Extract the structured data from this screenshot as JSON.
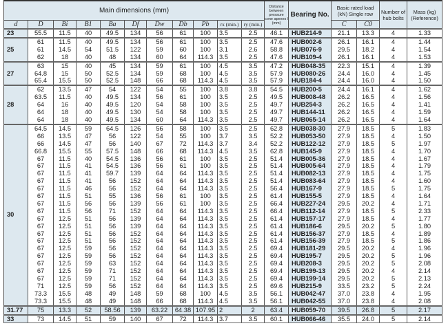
{
  "header": {
    "main_dimensions": "Main dimensions (mm)",
    "distance": "Distance between pressure cone apexes l (mm)",
    "bearing_no": "Bearing No.",
    "load": "Basic rated load (kN) Single row",
    "bolts": "Number of hub bolts",
    "mass": "Mass (kg) (Reference)",
    "columns": [
      "d",
      "D",
      "Bi",
      "B1",
      "Ba",
      "Df",
      "Dw",
      "Db",
      "Pb",
      "rx (min.)",
      "ry (min.)"
    ],
    "load_columns": [
      "C",
      "C0"
    ]
  },
  "colors": {
    "header_bg": "#dde8ef",
    "bearing_col_bg": "#dce8f0"
  },
  "groups": [
    {
      "d": "23",
      "rows": [
        [
          "55.5",
          "11.5",
          "40",
          "49.5",
          "134",
          "56",
          "61",
          "100",
          "3.5",
          "2.5",
          "46.1",
          "HUB214-9",
          "21.1",
          "13.3",
          "4",
          "1.33"
        ]
      ]
    },
    {
      "d": "25",
      "rows": [
        [
          "61",
          "11.5",
          "40",
          "49.5",
          "134",
          "56",
          "61",
          "100",
          "3.5",
          "2.5",
          "47.6",
          "HUB002-6",
          "26.1",
          "16.1",
          "4",
          "1.44"
        ],
        [
          "61",
          "14.5",
          "54",
          "51.5",
          "122",
          "59",
          "60",
          "100",
          "3.1",
          "2.6",
          "58.8",
          "HUB076-9",
          "29.5",
          "18.2",
          "4",
          "1.54"
        ],
        [
          "62",
          "18",
          "40",
          "48",
          "134",
          "60",
          "64",
          "114.3",
          "3.5",
          "2.5",
          "47.6",
          "HUB109-4",
          "26.1",
          "16.1",
          "4",
          "1.53"
        ]
      ]
    },
    {
      "d": "27",
      "rows": [
        [
          "63",
          "15",
          "40",
          "45",
          "134",
          "59",
          "61",
          "100",
          "4.5",
          "3.5",
          "47.2",
          "HUB048-35",
          "22.3",
          "15.1",
          "4",
          "1.39"
        ],
        [
          "64.8",
          "15",
          "50",
          "52.5",
          "134",
          "59",
          "68",
          "100",
          "4.5",
          "3.5",
          "57.9",
          "HUB080-26",
          "24.4",
          "16.0",
          "4",
          "1.45"
        ],
        [
          "65.4",
          "15.5",
          "50",
          "52.5",
          "148",
          "66",
          "68",
          "114.3",
          "4.5",
          "3.5",
          "57.9",
          "HUB184-4",
          "24.4",
          "16.0",
          "4",
          "1.50"
        ]
      ]
    },
    {
      "d": "28",
      "rows": [
        [
          "62",
          "13.5",
          "47",
          "54",
          "122",
          "54",
          "55",
          "100",
          "3.8",
          "3.8",
          "54.5",
          "HUB200-5",
          "24.4",
          "16.1",
          "4",
          "1.62"
        ],
        [
          "63.5",
          "11.5",
          "40",
          "49.5",
          "134",
          "56",
          "61",
          "100",
          "3.5",
          "2.5",
          "49.5",
          "HUB008-48",
          "26.2",
          "16.5",
          "4",
          "1.56"
        ],
        [
          "64",
          "16",
          "40",
          "49.5",
          "120",
          "54",
          "58",
          "100",
          "3.5",
          "2.5",
          "49.7",
          "HUB254-3",
          "26.2",
          "16.5",
          "4",
          "1.41"
        ],
        [
          "64",
          "18",
          "40",
          "49.5",
          "130",
          "54",
          "58",
          "100",
          "3.5",
          "2.5",
          "49.7",
          "HUB144-11",
          "26.2",
          "16.5",
          "4",
          "1.59"
        ],
        [
          "64",
          "18",
          "40",
          "49.5",
          "134",
          "60",
          "64",
          "114.3",
          "3.5",
          "2.5",
          "49.7",
          "HUB065-14",
          "26.2",
          "16.5",
          "4",
          "1.64"
        ]
      ]
    },
    {
      "d": "30",
      "rows": [
        [
          "64.5",
          "14.5",
          "59",
          "64.5",
          "126",
          "56",
          "58",
          "100",
          "3.5",
          "2.5",
          "62.8",
          "HUB038-30",
          "27.9",
          "18.5",
          "5",
          "1.83"
        ],
        [
          "66",
          "13.5",
          "47",
          "56",
          "122",
          "54",
          "55",
          "100",
          "3.7",
          "3.5",
          "52.2",
          "HUB053-50",
          "27.9",
          "18.5",
          "4",
          "1.50"
        ],
        [
          "66",
          "14.5",
          "47",
          "56",
          "140",
          "67",
          "72",
          "114.3",
          "3.7",
          "3.4",
          "52.2",
          "HUB122-12",
          "27.9",
          "18.5",
          "5",
          "1.97"
        ],
        [
          "66.8",
          "15.5",
          "55",
          "57.5",
          "148",
          "66",
          "68",
          "114.3",
          "4.5",
          "3.5",
          "62.8",
          "HUB145-9",
          "27.9",
          "18.5",
          "4",
          "1.70"
        ],
        [
          "67",
          "11.5",
          "40",
          "54.5",
          "136",
          "56",
          "61",
          "100",
          "3.5",
          "2.5",
          "51.4",
          "HUB005-36",
          "27.9",
          "18.5",
          "4",
          "1.67"
        ],
        [
          "67",
          "11.5",
          "41",
          "54.5",
          "136",
          "56",
          "61",
          "100",
          "3.5",
          "2.5",
          "51.4",
          "HUB005-64",
          "27.9",
          "18.5",
          "4",
          "1.79"
        ],
        [
          "67",
          "11.5",
          "41",
          "59.7",
          "139",
          "64",
          "64",
          "114.3",
          "3.5",
          "2.5",
          "51.4",
          "HUB082-13",
          "27.9",
          "18.5",
          "4",
          "1.75"
        ],
        [
          "67",
          "11.5",
          "41",
          "56",
          "152",
          "64",
          "64",
          "114.3",
          "3.5",
          "2.5",
          "51.4",
          "HUB083-64",
          "27.9",
          "18.5",
          "4",
          "1.60"
        ],
        [
          "67",
          "11.5",
          "46",
          "56",
          "152",
          "64",
          "64",
          "114.3",
          "3.5",
          "2.5",
          "56.4",
          "HUB167-9",
          "27.9",
          "18.5",
          "5",
          "1.75"
        ],
        [
          "67",
          "11.5",
          "51",
          "55",
          "136",
          "56",
          "61",
          "100",
          "3.5",
          "2.5",
          "61.4",
          "HUB155-5",
          "27.9",
          "18.5",
          "4",
          "1.64"
        ],
        [
          "67",
          "11.5",
          "56",
          "56",
          "139",
          "56",
          "61",
          "100",
          "3.5",
          "2.5",
          "66.4",
          "HUB227-24",
          "29.5",
          "20.2",
          "4",
          "1.71"
        ],
        [
          "67",
          "11.5",
          "56",
          "71",
          "152",
          "64",
          "64",
          "114.3",
          "3.5",
          "2.5",
          "66.4",
          "HUB112-14",
          "27.9",
          "18.5",
          "5",
          "2.33"
        ],
        [
          "67",
          "12.5",
          "51",
          "56",
          "139",
          "64",
          "64",
          "114.3",
          "3.5",
          "2.5",
          "61.4",
          "HUB157-17",
          "27.9",
          "18.5",
          "4",
          "1.77"
        ],
        [
          "67",
          "12.5",
          "51",
          "56",
          "139",
          "64",
          "64",
          "114.3",
          "3.5",
          "2.5",
          "61.4",
          "HUB186-6",
          "29.5",
          "20.2",
          "5",
          "1.80"
        ],
        [
          "67",
          "12.5",
          "51",
          "56",
          "152",
          "64",
          "64",
          "114.3",
          "3.5",
          "2.5",
          "61.4",
          "HUB156-37",
          "27.9",
          "18.5",
          "4",
          "1.89"
        ],
        [
          "67",
          "12.5",
          "51",
          "56",
          "152",
          "64",
          "64",
          "114.3",
          "3.5",
          "2.5",
          "61.4",
          "HUB156-39",
          "27.9",
          "18.5",
          "5",
          "1.86"
        ],
        [
          "67",
          "12.5",
          "59",
          "56",
          "152",
          "64",
          "64",
          "114.3",
          "3.5",
          "2.5",
          "69.4",
          "HUB181-29",
          "29.5",
          "20.2",
          "4",
          "1.96"
        ],
        [
          "67",
          "12.5",
          "59",
          "56",
          "152",
          "64",
          "64",
          "114.3",
          "3.5",
          "2.5",
          "69.4",
          "HUB195-7",
          "29.5",
          "20.2",
          "5",
          "1.96"
        ],
        [
          "67",
          "12.5",
          "59",
          "63",
          "152",
          "64",
          "64",
          "114.3",
          "3.5",
          "2.5",
          "69.4",
          "HUB208-3",
          "29.5",
          "20.2",
          "5",
          "2.08"
        ],
        [
          "67",
          "12.5",
          "59",
          "71",
          "152",
          "64",
          "64",
          "114.3",
          "3.5",
          "2.5",
          "69.4",
          "HUB199-13",
          "29.5",
          "20.2",
          "4",
          "2.14"
        ],
        [
          "67",
          "12.5",
          "59",
          "71",
          "152",
          "64",
          "64",
          "114.3",
          "3.5",
          "2.5",
          "69.4",
          "HUB199-14",
          "29.5",
          "20.2",
          "5",
          "2.13"
        ],
        [
          "71",
          "12.5",
          "59",
          "56",
          "152",
          "64",
          "64",
          "114.3",
          "3.5",
          "2.5",
          "69.6",
          "HUB215-9",
          "33.5",
          "23.2",
          "5",
          "2.24"
        ],
        [
          "73.3",
          "15.5",
          "48",
          "49",
          "148",
          "59",
          "68",
          "100",
          "4.5",
          "3.5",
          "56.1",
          "HUB042-47",
          "37.0",
          "23.8",
          "4",
          "1.95"
        ],
        [
          "73.3",
          "15.5",
          "48",
          "49",
          "148",
          "66",
          "68",
          "114.3",
          "4.5",
          "3.5",
          "56.1",
          "HUB042-55",
          "37.0",
          "23.8",
          "4",
          "2.08"
        ]
      ]
    },
    {
      "d": "31.77",
      "shade": true,
      "rows": [
        [
          "75",
          "13.3",
          "52",
          "58.56",
          "139",
          "63.22",
          "64.38",
          "107.95",
          "2",
          "2",
          "63.4",
          "HUB059-70",
          "39.5",
          "26.8",
          "5",
          "2.17"
        ]
      ]
    },
    {
      "d": "33",
      "rows": [
        [
          "73",
          "14.5",
          "51",
          "59",
          "140",
          "67",
          "72",
          "114.3",
          "3.7",
          "3.5",
          "60.1",
          "HUB066-46",
          "35.5",
          "24.0",
          "5",
          "2.14"
        ]
      ]
    }
  ]
}
